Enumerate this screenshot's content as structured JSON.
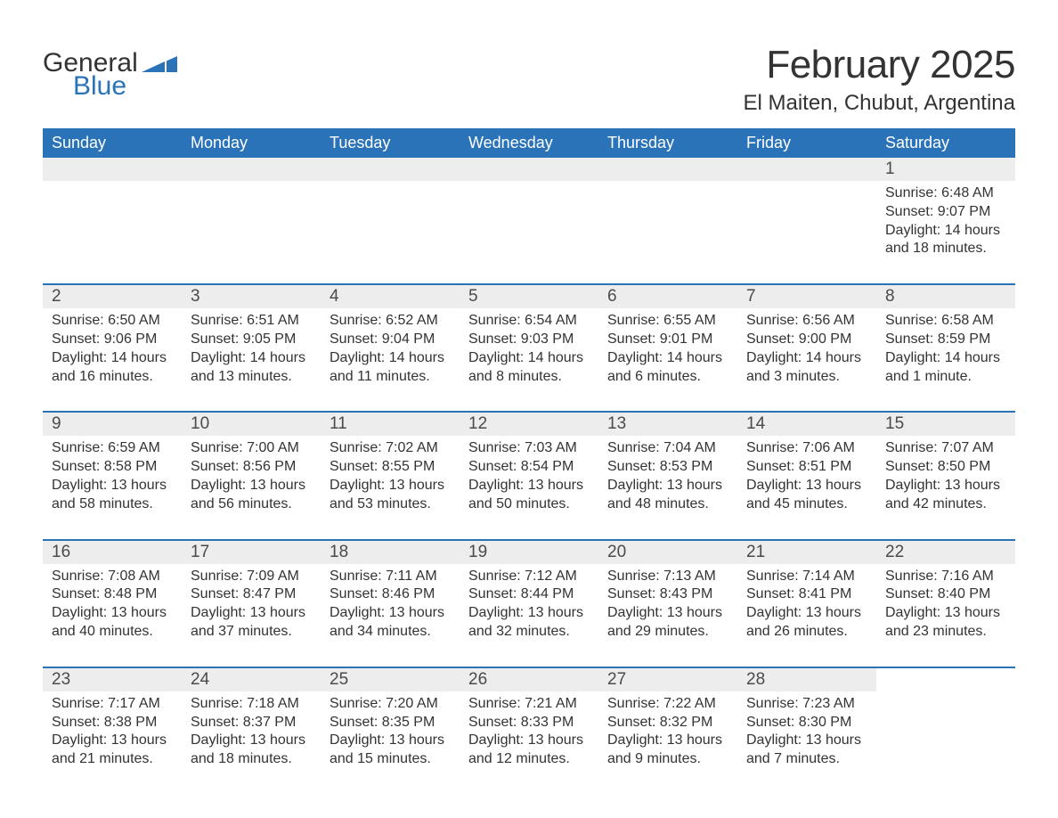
{
  "brand": {
    "part1": "General",
    "part2": "Blue",
    "flag_color": "#2a73b8"
  },
  "title": "February 2025",
  "location": "El Maiten, Chubut, Argentina",
  "colors": {
    "header_bg": "#2a73b8",
    "header_text": "#ffffff",
    "row_border": "#2a73b8",
    "daynum_bg": "#ededed",
    "text": "#333333",
    "background": "#ffffff"
  },
  "weekdays": [
    "Sunday",
    "Monday",
    "Tuesday",
    "Wednesday",
    "Thursday",
    "Friday",
    "Saturday"
  ],
  "weeks": [
    [
      null,
      null,
      null,
      null,
      null,
      null,
      {
        "n": "1",
        "sunrise": "Sunrise: 6:48 AM",
        "sunset": "Sunset: 9:07 PM",
        "day1": "Daylight: 14 hours",
        "day2": "and 18 minutes."
      }
    ],
    [
      {
        "n": "2",
        "sunrise": "Sunrise: 6:50 AM",
        "sunset": "Sunset: 9:06 PM",
        "day1": "Daylight: 14 hours",
        "day2": "and 16 minutes."
      },
      {
        "n": "3",
        "sunrise": "Sunrise: 6:51 AM",
        "sunset": "Sunset: 9:05 PM",
        "day1": "Daylight: 14 hours",
        "day2": "and 13 minutes."
      },
      {
        "n": "4",
        "sunrise": "Sunrise: 6:52 AM",
        "sunset": "Sunset: 9:04 PM",
        "day1": "Daylight: 14 hours",
        "day2": "and 11 minutes."
      },
      {
        "n": "5",
        "sunrise": "Sunrise: 6:54 AM",
        "sunset": "Sunset: 9:03 PM",
        "day1": "Daylight: 14 hours",
        "day2": "and 8 minutes."
      },
      {
        "n": "6",
        "sunrise": "Sunrise: 6:55 AM",
        "sunset": "Sunset: 9:01 PM",
        "day1": "Daylight: 14 hours",
        "day2": "and 6 minutes."
      },
      {
        "n": "7",
        "sunrise": "Sunrise: 6:56 AM",
        "sunset": "Sunset: 9:00 PM",
        "day1": "Daylight: 14 hours",
        "day2": "and 3 minutes."
      },
      {
        "n": "8",
        "sunrise": "Sunrise: 6:58 AM",
        "sunset": "Sunset: 8:59 PM",
        "day1": "Daylight: 14 hours",
        "day2": "and 1 minute."
      }
    ],
    [
      {
        "n": "9",
        "sunrise": "Sunrise: 6:59 AM",
        "sunset": "Sunset: 8:58 PM",
        "day1": "Daylight: 13 hours",
        "day2": "and 58 minutes."
      },
      {
        "n": "10",
        "sunrise": "Sunrise: 7:00 AM",
        "sunset": "Sunset: 8:56 PM",
        "day1": "Daylight: 13 hours",
        "day2": "and 56 minutes."
      },
      {
        "n": "11",
        "sunrise": "Sunrise: 7:02 AM",
        "sunset": "Sunset: 8:55 PM",
        "day1": "Daylight: 13 hours",
        "day2": "and 53 minutes."
      },
      {
        "n": "12",
        "sunrise": "Sunrise: 7:03 AM",
        "sunset": "Sunset: 8:54 PM",
        "day1": "Daylight: 13 hours",
        "day2": "and 50 minutes."
      },
      {
        "n": "13",
        "sunrise": "Sunrise: 7:04 AM",
        "sunset": "Sunset: 8:53 PM",
        "day1": "Daylight: 13 hours",
        "day2": "and 48 minutes."
      },
      {
        "n": "14",
        "sunrise": "Sunrise: 7:06 AM",
        "sunset": "Sunset: 8:51 PM",
        "day1": "Daylight: 13 hours",
        "day2": "and 45 minutes."
      },
      {
        "n": "15",
        "sunrise": "Sunrise: 7:07 AM",
        "sunset": "Sunset: 8:50 PM",
        "day1": "Daylight: 13 hours",
        "day2": "and 42 minutes."
      }
    ],
    [
      {
        "n": "16",
        "sunrise": "Sunrise: 7:08 AM",
        "sunset": "Sunset: 8:48 PM",
        "day1": "Daylight: 13 hours",
        "day2": "and 40 minutes."
      },
      {
        "n": "17",
        "sunrise": "Sunrise: 7:09 AM",
        "sunset": "Sunset: 8:47 PM",
        "day1": "Daylight: 13 hours",
        "day2": "and 37 minutes."
      },
      {
        "n": "18",
        "sunrise": "Sunrise: 7:11 AM",
        "sunset": "Sunset: 8:46 PM",
        "day1": "Daylight: 13 hours",
        "day2": "and 34 minutes."
      },
      {
        "n": "19",
        "sunrise": "Sunrise: 7:12 AM",
        "sunset": "Sunset: 8:44 PM",
        "day1": "Daylight: 13 hours",
        "day2": "and 32 minutes."
      },
      {
        "n": "20",
        "sunrise": "Sunrise: 7:13 AM",
        "sunset": "Sunset: 8:43 PM",
        "day1": "Daylight: 13 hours",
        "day2": "and 29 minutes."
      },
      {
        "n": "21",
        "sunrise": "Sunrise: 7:14 AM",
        "sunset": "Sunset: 8:41 PM",
        "day1": "Daylight: 13 hours",
        "day2": "and 26 minutes."
      },
      {
        "n": "22",
        "sunrise": "Sunrise: 7:16 AM",
        "sunset": "Sunset: 8:40 PM",
        "day1": "Daylight: 13 hours",
        "day2": "and 23 minutes."
      }
    ],
    [
      {
        "n": "23",
        "sunrise": "Sunrise: 7:17 AM",
        "sunset": "Sunset: 8:38 PM",
        "day1": "Daylight: 13 hours",
        "day2": "and 21 minutes."
      },
      {
        "n": "24",
        "sunrise": "Sunrise: 7:18 AM",
        "sunset": "Sunset: 8:37 PM",
        "day1": "Daylight: 13 hours",
        "day2": "and 18 minutes."
      },
      {
        "n": "25",
        "sunrise": "Sunrise: 7:20 AM",
        "sunset": "Sunset: 8:35 PM",
        "day1": "Daylight: 13 hours",
        "day2": "and 15 minutes."
      },
      {
        "n": "26",
        "sunrise": "Sunrise: 7:21 AM",
        "sunset": "Sunset: 8:33 PM",
        "day1": "Daylight: 13 hours",
        "day2": "and 12 minutes."
      },
      {
        "n": "27",
        "sunrise": "Sunrise: 7:22 AM",
        "sunset": "Sunset: 8:32 PM",
        "day1": "Daylight: 13 hours",
        "day2": "and 9 minutes."
      },
      {
        "n": "28",
        "sunrise": "Sunrise: 7:23 AM",
        "sunset": "Sunset: 8:30 PM",
        "day1": "Daylight: 13 hours",
        "day2": "and 7 minutes."
      },
      null
    ]
  ]
}
